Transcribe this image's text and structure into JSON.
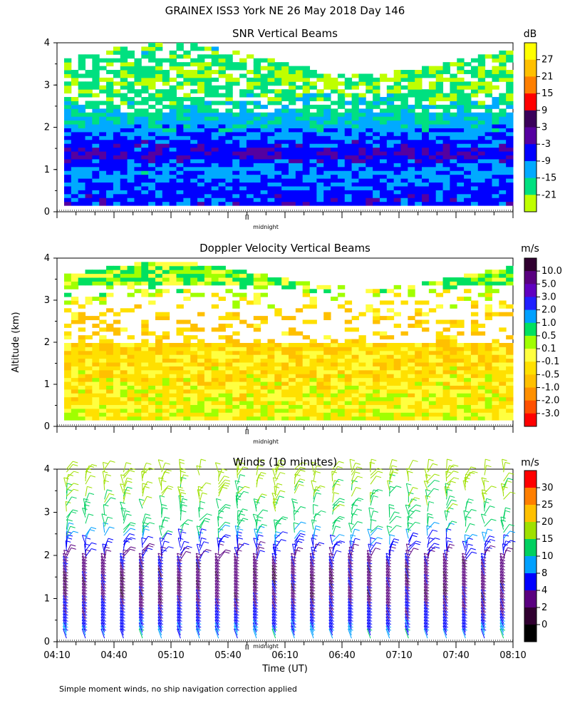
{
  "figure": {
    "title": "GRAINEX ISS3 York NE  26 May 2018 Day 146",
    "ylabel": "Altitude (km)",
    "xlabel": "Time (UT)",
    "footnote": "Simple moment winds, no ship navigation correction applied",
    "midnight_label": "midnight"
  },
  "chart_data": [
    {
      "type": "heatmap",
      "title": "SNR Vertical Beams",
      "ylabel": "Altitude (km)",
      "yticks": [
        0,
        1,
        2,
        3,
        4
      ],
      "ylim": [
        0,
        4
      ],
      "xlim": [
        "04:10",
        "08:10"
      ],
      "colorbar": {
        "unit": "dB",
        "ticks": [
          "27",
          "21",
          "15",
          "9",
          "3",
          "-3",
          "-9",
          "-15",
          "-21"
        ],
        "colors": [
          "#ffff00",
          "#ffc000",
          "#ff7f00",
          "#ff0000",
          "#3a005a",
          "#5500a0",
          "#0000ff",
          "#00aaff",
          "#00e080",
          "#bfff00"
        ]
      },
      "profile": [
        {
          "alt": 0.2,
          "value": -3
        },
        {
          "alt": 0.5,
          "value": -5
        },
        {
          "alt": 0.9,
          "value": -8
        },
        {
          "alt": 1.3,
          "value": 0
        },
        {
          "alt": 1.6,
          "value": -4
        },
        {
          "alt": 1.9,
          "value": -9
        },
        {
          "alt": 2.4,
          "value": -13
        },
        {
          "alt": 3.0,
          "value": -18
        },
        {
          "alt": 3.6,
          "value": -16
        }
      ]
    },
    {
      "type": "heatmap",
      "title": "Doppler Velocity Vertical Beams",
      "ylabel": "Altitude (km)",
      "yticks": [
        0,
        1,
        2,
        3,
        4
      ],
      "ylim": [
        0,
        4
      ],
      "xlim": [
        "04:10",
        "08:10"
      ],
      "colorbar": {
        "unit": "m/s",
        "ticks": [
          "10.0",
          "5.0",
          "3.0",
          "2.0",
          "1.0",
          "0.5",
          "0.1",
          "-0.1",
          "-0.5",
          "-1.0",
          "-2.0",
          "-3.0"
        ],
        "colors": [
          "#300030",
          "#5a0080",
          "#6000c0",
          "#2020ff",
          "#00a0ff",
          "#00e060",
          "#a0ff00",
          "#ffff40",
          "#ffe000",
          "#ffc000",
          "#ff9000",
          "#ff5000",
          "#ff0000"
        ]
      },
      "profile": [
        {
          "alt": 0.3,
          "value": -0.2
        },
        {
          "alt": 1.0,
          "value": -0.4
        },
        {
          "alt": 1.8,
          "value": -0.6
        },
        {
          "alt": 2.5,
          "value": -0.8
        },
        {
          "alt": 3.3,
          "value": 0.2
        }
      ]
    },
    {
      "type": "scatter",
      "title": "Winds (10 minutes)",
      "ylabel": "Altitude (km)",
      "xlabel": "Time (UT)",
      "yticks": [
        0,
        1,
        2,
        3,
        4
      ],
      "ylim": [
        0,
        4
      ],
      "xticks": [
        "04:10",
        "04:40",
        "05:10",
        "05:40",
        "06:10",
        "06:40",
        "07:10",
        "07:40",
        "08:10"
      ],
      "xlim": [
        "04:10",
        "08:10"
      ],
      "colorbar": {
        "unit": "m/s",
        "ticks": [
          "30",
          "25",
          "20",
          "15",
          "10",
          "8",
          "4",
          "2",
          "0"
        ],
        "colors": [
          "#ff0000",
          "#ff7f00",
          "#ffc000",
          "#9fe000",
          "#00d060",
          "#00a0ff",
          "#0000ff",
          "#5a0080",
          "#300030",
          "#000000"
        ]
      },
      "profile": [
        {
          "alt": 0.1,
          "speed": 9
        },
        {
          "alt": 0.5,
          "speed": 5
        },
        {
          "alt": 1.0,
          "speed": 3
        },
        {
          "alt": 1.5,
          "speed": 3
        },
        {
          "alt": 2.0,
          "speed": 4
        },
        {
          "alt": 2.5,
          "speed": 10
        },
        {
          "alt": 3.0,
          "speed": 14
        },
        {
          "alt": 3.5,
          "speed": 16
        },
        {
          "alt": 4.0,
          "speed": 17
        }
      ]
    }
  ]
}
